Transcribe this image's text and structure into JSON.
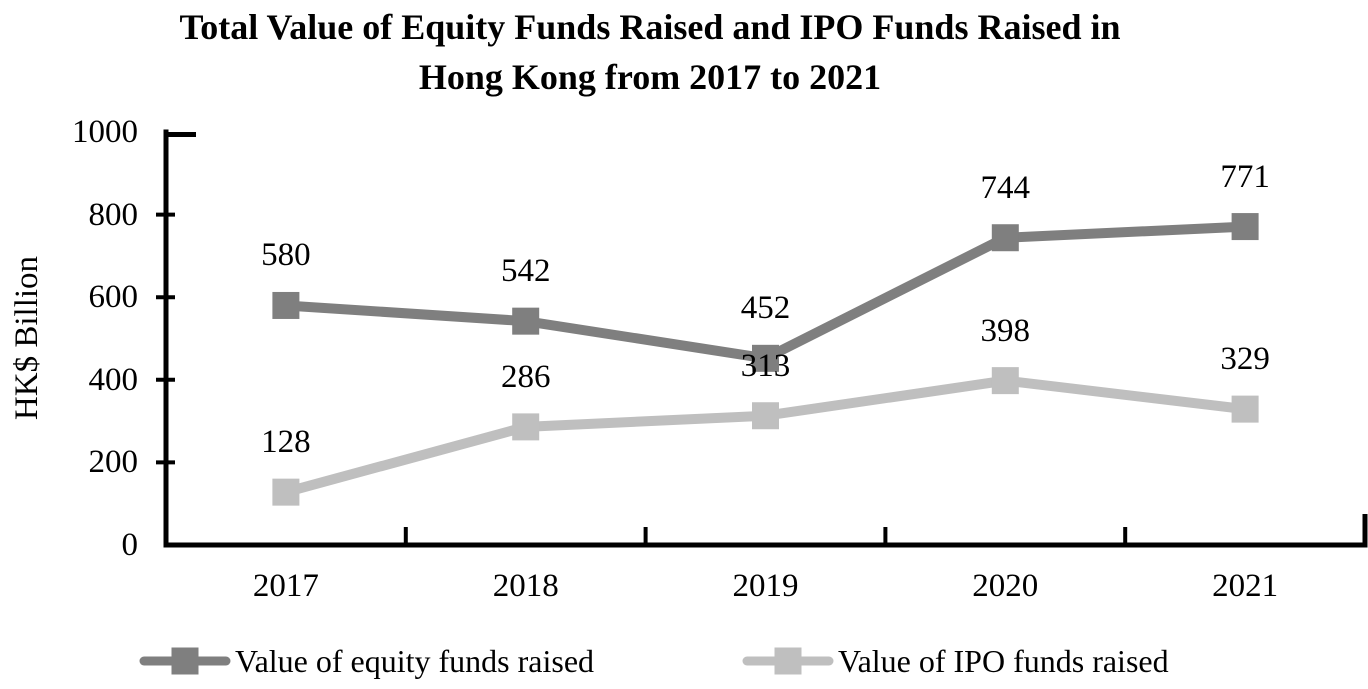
{
  "title": {
    "line1": "Total Value of Equity Funds Raised and IPO Funds Raised in",
    "line2": "Hong Kong from 2017 to 2021"
  },
  "chart_data": {
    "type": "line",
    "title": "Total Value of Equity Funds Raised and IPO Funds Raised in Hong Kong from 2017 to 2021",
    "categories": [
      "2017",
      "2018",
      "2019",
      "2020",
      "2021"
    ],
    "series": [
      {
        "name": "Value of equity funds raised",
        "values": [
          580,
          542,
          452,
          744,
          771
        ],
        "color": "#7f7f7f",
        "marker": "square"
      },
      {
        "name": "Value of IPO funds raised",
        "values": [
          128,
          286,
          313,
          398,
          329
        ],
        "color": "#bfbfbf",
        "marker": "square"
      }
    ],
    "xlabel": "",
    "ylabel": "HK$ Billion",
    "ylim": [
      0,
      1000
    ],
    "y_ticks": [
      "0",
      "200",
      "400",
      "600",
      "800",
      "1000"
    ],
    "grid": false,
    "data_labels": true,
    "legend_position": "bottom",
    "axis_color": "#000000",
    "text_color": "#000000",
    "background_color": "#ffffff"
  }
}
